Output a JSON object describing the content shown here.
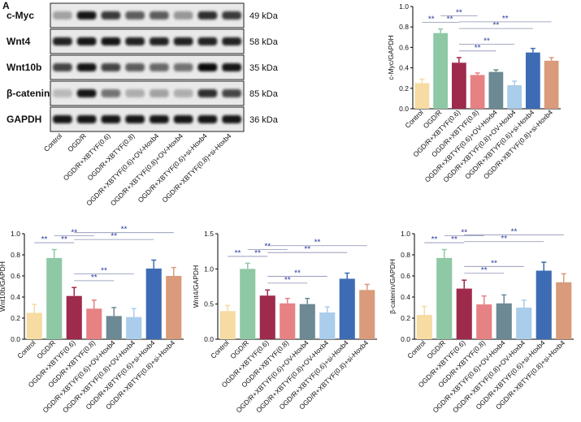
{
  "panel_label": "A",
  "blot": {
    "rows": [
      {
        "name": "c-Myc",
        "size": "49 kDa"
      },
      {
        "name": "Wnt4",
        "size": "58 kDa"
      },
      {
        "name": "Wnt10b",
        "size": "35 kDa"
      },
      {
        "name": "β-catenin",
        "size": "85 kDa"
      },
      {
        "name": "GAPDH",
        "size": "36 kDa"
      }
    ]
  },
  "chart_data": [
    {
      "type": "bar",
      "ylabel": "c-Myc/GAPDH",
      "categories": [
        "Control",
        "OGD/R",
        "OGD/R+XBTYF(0.6)",
        "OGD/R+XBTYF(0.8)",
        "OGD/R+XBTYF(0.6)+OV-Hoxb4",
        "OGD/R+XBTYF(0.8)+OV-Hoxb4",
        "OGD/R+XBTYF(0.6)+si-Hoxb4",
        "OGD/R+XBTYF(0.8)+si-Hoxb4"
      ],
      "values": [
        0.25,
        0.74,
        0.45,
        0.33,
        0.36,
        0.23,
        0.55,
        0.47
      ],
      "errors": [
        0.04,
        0.04,
        0.05,
        0.02,
        0.02,
        0.04,
        0.04,
        0.03
      ],
      "colors": [
        "#f6dba2",
        "#8ec8a4",
        "#9e2a4c",
        "#e68283",
        "#6c8994",
        "#a9cdea",
        "#3d6cb4",
        "#d99b7b"
      ],
      "ylim": [
        0,
        1
      ],
      "yticks": [
        {
          "value": 0,
          "label": "0.0"
        },
        0.2,
        0.4,
        0.6,
        0.8,
        {
          "value": 1,
          "label": "1.0"
        }
      ],
      "annotations": [
        {
          "from": 0,
          "to": 1,
          "label": "**"
        },
        {
          "from": 1,
          "to": 2,
          "label": "**"
        },
        {
          "from": 1,
          "to": 3,
          "label": "**"
        },
        {
          "from": 2,
          "to": 4,
          "label": "**"
        },
        {
          "from": 2,
          "to": 5,
          "label": "**"
        },
        {
          "from": 2,
          "to": 6,
          "label": "**"
        },
        {
          "from": 2,
          "to": 7,
          "label": "**"
        }
      ]
    },
    {
      "type": "bar",
      "ylabel": "Wnt10b/GAPDH",
      "categories": [
        "Control",
        "OGD/R",
        "OGD/R+XBTYF(0.6)",
        "OGD/R+XBTYF(0.8)",
        "OGD/R+XBTYF(0.6)+OV-Hoxb4",
        "OGD/R+XBTYF(0.8)+OV-Hoxb4",
        "OGD/R+XBTYF(0.6)+si-Hoxb4",
        "OGD/R+XBTYF(0.8)+si-Hoxb4"
      ],
      "values": [
        0.25,
        0.77,
        0.41,
        0.29,
        0.22,
        0.21,
        0.67,
        0.6
      ],
      "errors": [
        0.08,
        0.08,
        0.08,
        0.08,
        0.08,
        0.08,
        0.08,
        0.08
      ],
      "colors": [
        "#f6dba2",
        "#8ec8a4",
        "#9e2a4c",
        "#e68283",
        "#6c8994",
        "#a9cdea",
        "#3d6cb4",
        "#d99b7b"
      ],
      "ylim": [
        0,
        1
      ],
      "yticks": [
        {
          "value": 0,
          "label": "0.0"
        },
        0.2,
        0.4,
        0.6,
        0.8,
        {
          "value": 1,
          "label": "1.0"
        }
      ],
      "annotations": [
        {
          "from": 0,
          "to": 1,
          "label": "**"
        },
        {
          "from": 1,
          "to": 2,
          "label": "**"
        },
        {
          "from": 1,
          "to": 3,
          "label": "**"
        },
        {
          "from": 2,
          "to": 4,
          "label": "**"
        },
        {
          "from": 2,
          "to": 5,
          "label": "**"
        },
        {
          "from": 2,
          "to": 6,
          "label": "**"
        },
        {
          "from": 2,
          "to": 7,
          "label": "**"
        }
      ]
    },
    {
      "type": "bar",
      "ylabel": "Wnt4/GAPDH",
      "categories": [
        "Control",
        "OGD/R",
        "OGD/R+XBTYF(0.6)",
        "OGD/R+XBTYF(0.8)",
        "OGD/R+XBTYF(0.6)+OV-Hoxb4",
        "OGD/R+XBTYF(0.8)+OV-Hoxb4",
        "OGD/R+XBTYF(0.6)+si-Hoxb4",
        "OGD/R+XBTYF(0.8)+si-Hoxb4"
      ],
      "values": [
        0.4,
        1.0,
        0.62,
        0.51,
        0.5,
        0.38,
        0.86,
        0.7
      ],
      "errors": [
        0.08,
        0.08,
        0.08,
        0.07,
        0.08,
        0.08,
        0.08,
        0.08
      ],
      "colors": [
        "#f6dba2",
        "#8ec8a4",
        "#9e2a4c",
        "#e68283",
        "#6c8994",
        "#a9cdea",
        "#3d6cb4",
        "#d99b7b"
      ],
      "ylim": [
        0,
        1.5
      ],
      "yticks": [
        {
          "value": 0,
          "label": "0.0"
        },
        0.5,
        {
          "value": 1,
          "label": "1.0"
        },
        1.5
      ],
      "annotations": [
        {
          "from": 0,
          "to": 1,
          "label": "**"
        },
        {
          "from": 1,
          "to": 2,
          "label": "**"
        },
        {
          "from": 1,
          "to": 3,
          "label": "**"
        },
        {
          "from": 2,
          "to": 4,
          "label": "**"
        },
        {
          "from": 2,
          "to": 5,
          "label": "**"
        },
        {
          "from": 2,
          "to": 6,
          "label": "**"
        },
        {
          "from": 2,
          "to": 7,
          "label": "**"
        }
      ]
    },
    {
      "type": "bar",
      "ylabel": "β-catenin/GAPDH",
      "categories": [
        "Control",
        "OGD/R",
        "OGD/R+XBTYF(0.6)",
        "OGD/R+XBTYF(0.8)",
        "OGD/R+XBTYF(0.6)+OV-Hoxb4",
        "OGD/R+XBTYF(0.8)+OV-Hoxb4",
        "OGD/R+XBTYF(0.6)+si-Hoxb4",
        "OGD/R+XBTYF(0.8)+si-Hoxb4"
      ],
      "values": [
        0.23,
        0.77,
        0.48,
        0.33,
        0.34,
        0.3,
        0.65,
        0.54
      ],
      "errors": [
        0.08,
        0.08,
        0.08,
        0.08,
        0.08,
        0.07,
        0.08,
        0.08
      ],
      "colors": [
        "#f6dba2",
        "#8ec8a4",
        "#9e2a4c",
        "#e68283",
        "#6c8994",
        "#a9cdea",
        "#3d6cb4",
        "#d99b7b"
      ],
      "ylim": [
        0,
        1
      ],
      "yticks": [
        {
          "value": 0,
          "label": "0.0"
        },
        0.2,
        0.4,
        0.6,
        0.8,
        {
          "value": 1,
          "label": "1.0"
        }
      ],
      "annotations": [
        {
          "from": 0,
          "to": 1,
          "label": "**"
        },
        {
          "from": 1,
          "to": 2,
          "label": "**"
        },
        {
          "from": 1,
          "to": 3,
          "label": "**"
        },
        {
          "from": 2,
          "to": 4,
          "label": "**"
        },
        {
          "from": 2,
          "to": 5,
          "label": "**"
        },
        {
          "from": 2,
          "to": 6,
          "label": "**"
        },
        {
          "from": 2,
          "to": 7,
          "label": "**"
        }
      ]
    }
  ]
}
